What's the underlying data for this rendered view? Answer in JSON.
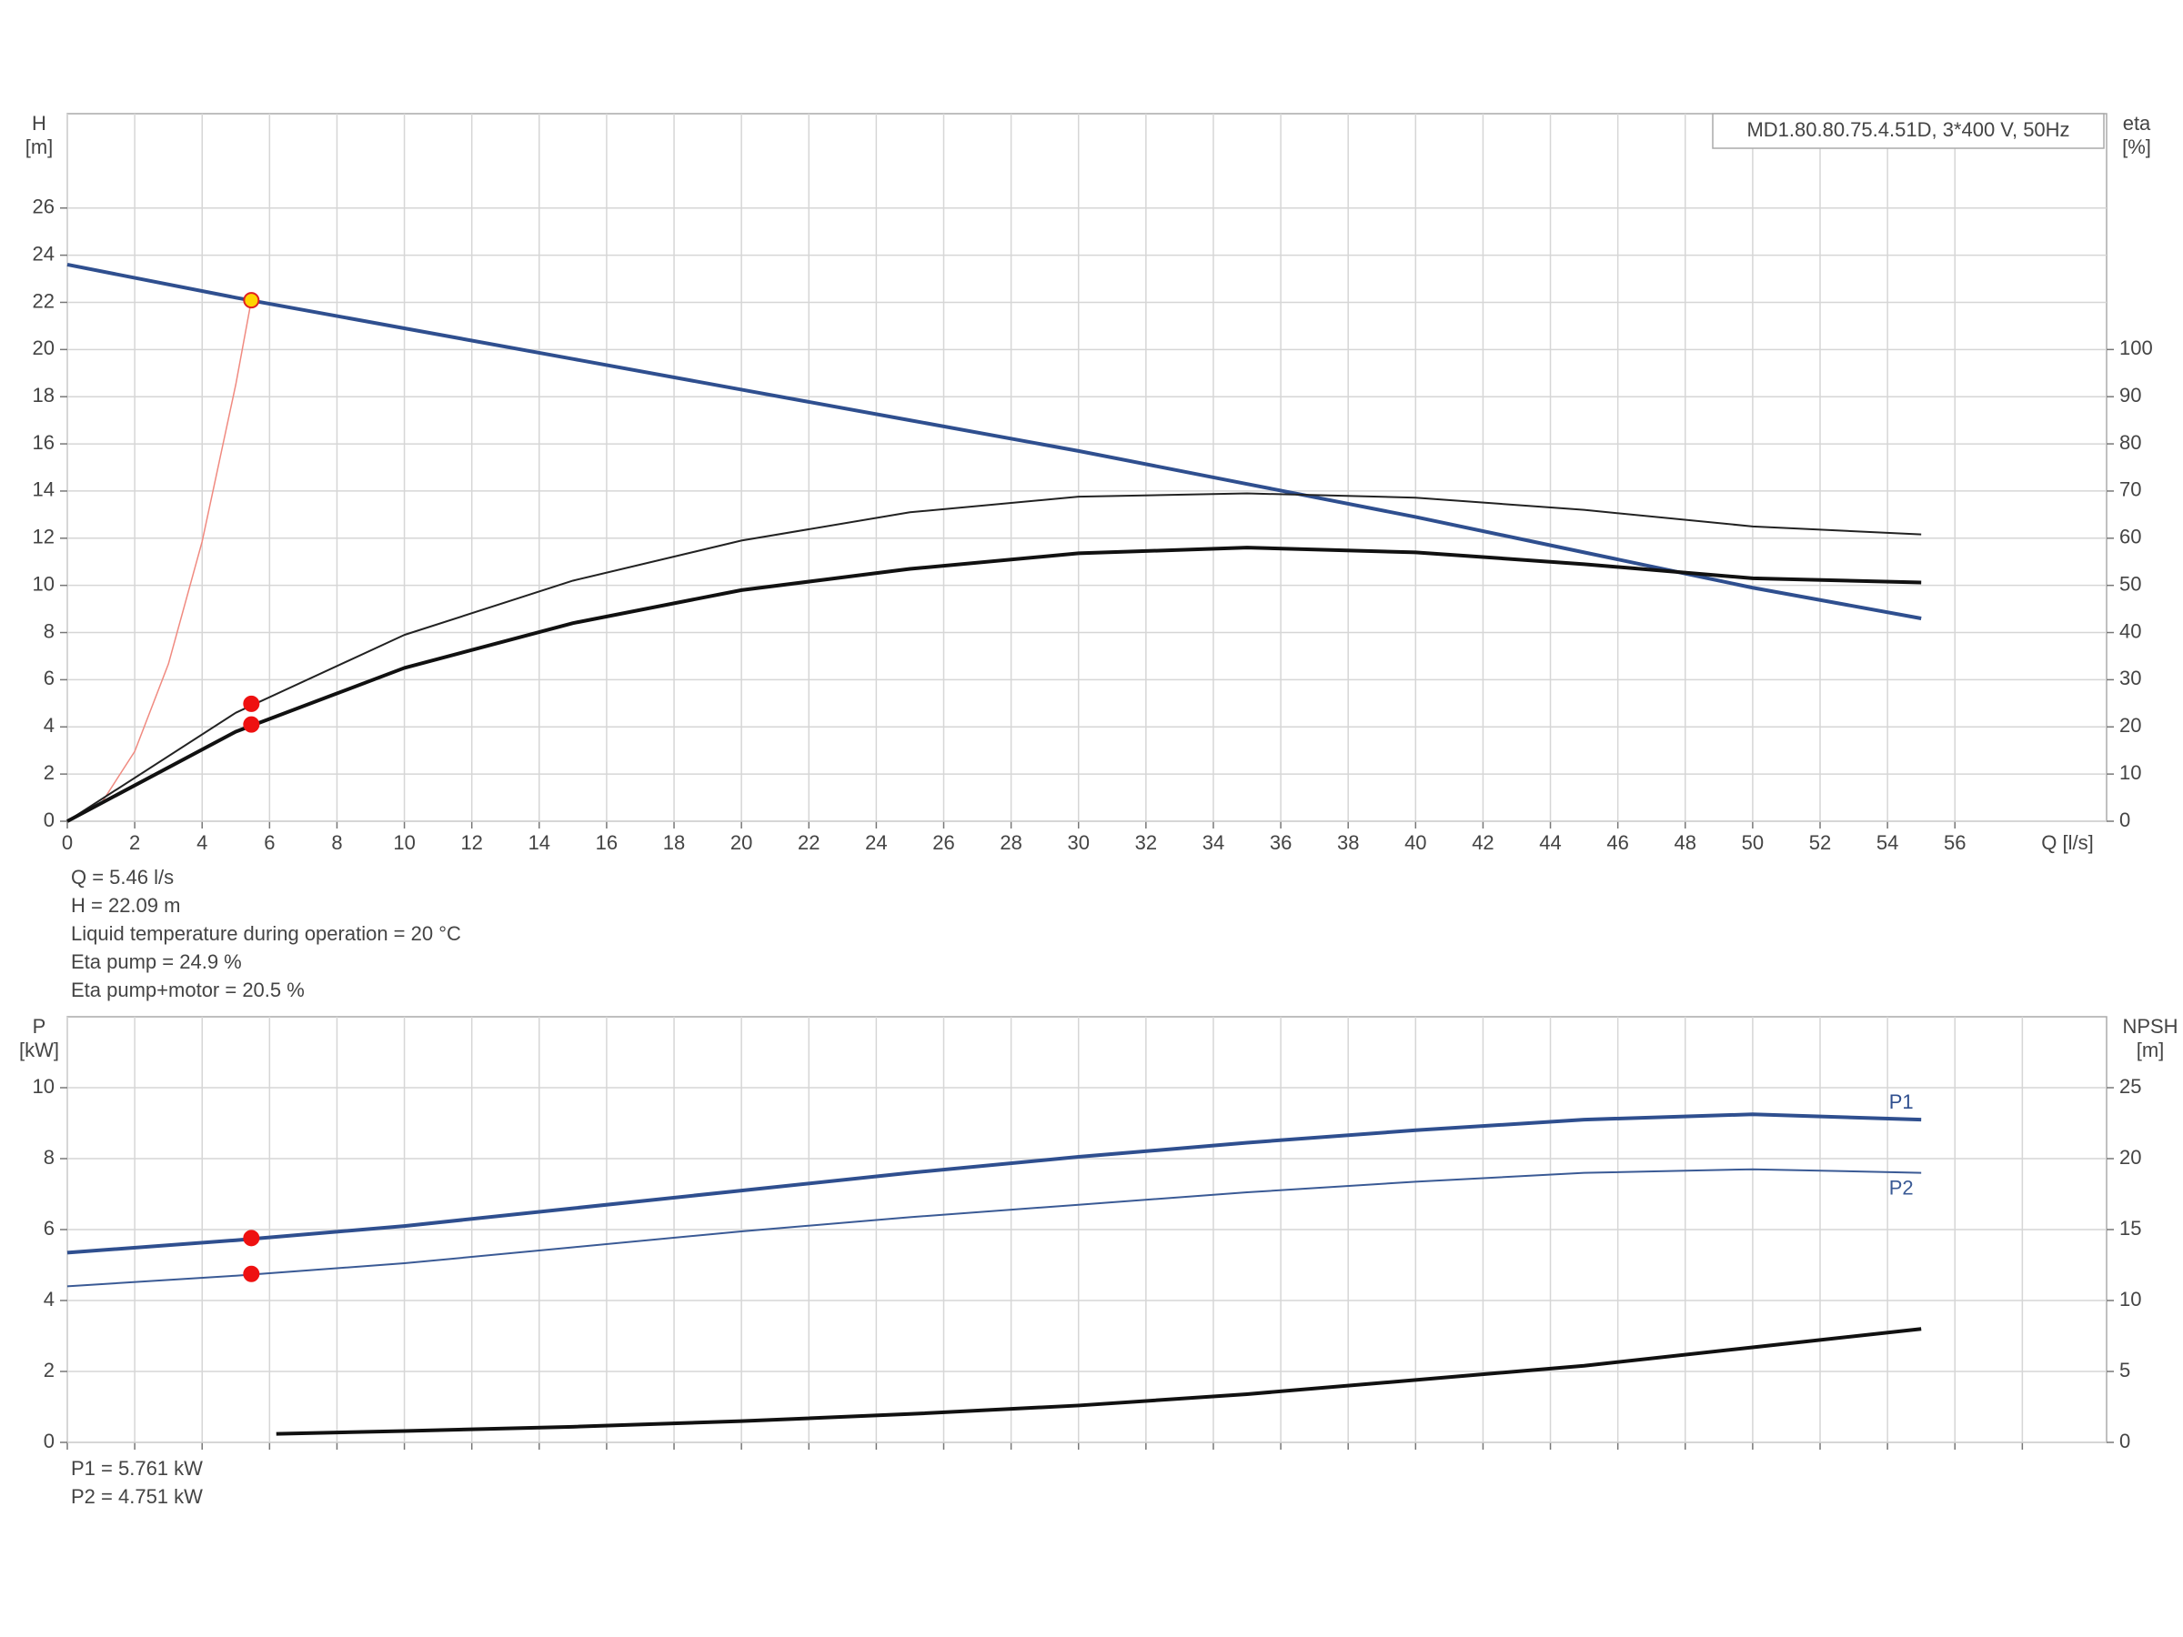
{
  "chart_data": [
    {
      "type": "line",
      "subtitle": "MD1.80.80.75.4.51D, 3*400 V, 50Hz",
      "ylabel": "H",
      "yunit": "[m]",
      "y2label": "eta",
      "y2unit": "[%]",
      "xlabel": "Q [l/s]",
      "xlim": [
        0,
        60.5
      ],
      "xticks": [
        0,
        2,
        4,
        6,
        8,
        10,
        12,
        14,
        16,
        18,
        20,
        22,
        24,
        26,
        28,
        30,
        32,
        34,
        36,
        38,
        40,
        42,
        44,
        46,
        48,
        50,
        52,
        54,
        56
      ],
      "ylim": [
        0,
        30
      ],
      "yticks": [
        0,
        2,
        4,
        6,
        8,
        10,
        12,
        14,
        16,
        18,
        20,
        22,
        24,
        26
      ],
      "y2lim": [
        0,
        150
      ],
      "y2ticks": [
        0,
        10,
        20,
        30,
        40,
        50,
        60,
        70,
        80,
        90,
        100
      ],
      "grid": true,
      "series": [
        {
          "mode": "line",
          "color": "#f08a80",
          "width": 1.5,
          "x": [
            0,
            1,
            2,
            3,
            4,
            5,
            5.46
          ],
          "values": [
            0,
            0.74,
            2.96,
            6.67,
            11.86,
            18.53,
            22.09
          ]
        },
        {
          "mode": "line",
          "color": "#2f4f8f",
          "width": 4,
          "x": [
            0,
            5,
            10,
            15,
            20,
            25,
            30,
            35,
            40,
            45,
            50,
            55
          ],
          "values": [
            23.6,
            22.2,
            20.9,
            19.6,
            18.3,
            17.0,
            15.7,
            14.3,
            12.9,
            11.4,
            9.9,
            8.6
          ]
        },
        {
          "mode": "line",
          "color": "#222222",
          "width": 2,
          "axis": "y2",
          "x": [
            0,
            5,
            10,
            15,
            20,
            25,
            30,
            35,
            40,
            45,
            50,
            55
          ],
          "values": [
            0,
            23,
            39.5,
            51,
            59.5,
            65.5,
            68.8,
            69.5,
            68.6,
            66,
            62.5,
            60.8
          ]
        },
        {
          "mode": "line",
          "color": "#111111",
          "width": 4,
          "axis": "y2",
          "x": [
            0,
            5,
            10,
            15,
            20,
            25,
            30,
            35,
            40,
            45,
            50,
            55
          ],
          "values": [
            0,
            19,
            32.5,
            42,
            49,
            53.5,
            56.8,
            58,
            57,
            54.5,
            51.5,
            50.6
          ]
        },
        {
          "mode": "marker",
          "color": "#ffd400",
          "stroke": "#e02020",
          "x": [
            5.46
          ],
          "values": [
            22.09
          ]
        },
        {
          "mode": "marker",
          "color": "#ee1111",
          "axis": "y2",
          "x": [
            5.46,
            5.46
          ],
          "values": [
            24.9,
            20.5
          ]
        }
      ],
      "info": [
        "Q = 5.46 l/s",
        "H = 22.09 m",
        "Liquid temperature during operation = 20 °C",
        "Eta pump = 24.9 %",
        "Eta pump+motor = 20.5 %"
      ]
    },
    {
      "type": "line",
      "ylabel": "P",
      "yunit": "[kW]",
      "y2label": "NPSH",
      "y2unit": "[m]",
      "xlim": [
        0,
        60.5
      ],
      "xgrid": [
        0,
        2,
        4,
        6,
        8,
        10,
        12,
        14,
        16,
        18,
        20,
        22,
        24,
        26,
        28,
        30,
        32,
        34,
        36,
        38,
        40,
        42,
        44,
        46,
        48,
        50,
        52,
        54,
        56,
        58
      ],
      "ylim": [
        0,
        12
      ],
      "yticks": [
        0,
        2,
        4,
        6,
        8,
        10
      ],
      "y2lim": [
        0,
        30
      ],
      "y2ticks": [
        0,
        5,
        10,
        15,
        20,
        25
      ],
      "grid": true,
      "series": [
        {
          "name": "P1",
          "label_pos": "above",
          "mode": "line",
          "color": "#2f4f8f",
          "width": 4,
          "x": [
            0,
            5,
            10,
            15,
            20,
            25,
            30,
            35,
            40,
            45,
            50,
            55
          ],
          "values": [
            5.35,
            5.7,
            6.1,
            6.6,
            7.1,
            7.6,
            8.05,
            8.45,
            8.8,
            9.1,
            9.25,
            9.1
          ]
        },
        {
          "name": "P2",
          "label_pos": "below",
          "mode": "line",
          "color": "#3a5a95",
          "width": 2,
          "x": [
            0,
            5,
            10,
            15,
            20,
            25,
            30,
            35,
            40,
            45,
            50,
            55
          ],
          "values": [
            4.4,
            4.7,
            5.05,
            5.5,
            5.95,
            6.35,
            6.7,
            7.05,
            7.35,
            7.6,
            7.7,
            7.6
          ]
        },
        {
          "mode": "line",
          "color": "#111111",
          "width": 4,
          "axis": "y2",
          "x": [
            6.2,
            10,
            15,
            20,
            25,
            30,
            35,
            40,
            45,
            50,
            55
          ],
          "values": [
            0.6,
            0.8,
            1.1,
            1.5,
            2.0,
            2.6,
            3.4,
            4.4,
            5.4,
            6.7,
            8.0
          ]
        },
        {
          "mode": "marker",
          "color": "#ee1111",
          "x": [
            5.46,
            5.46
          ],
          "values": [
            5.761,
            4.751
          ]
        }
      ],
      "info": [
        "P1 = 5.761 kW",
        "P2 = 4.751 kW"
      ]
    }
  ]
}
